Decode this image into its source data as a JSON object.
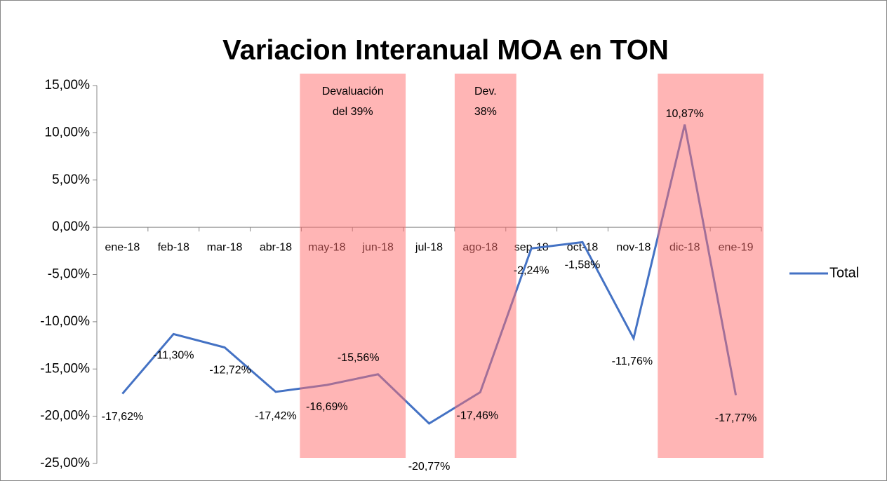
{
  "chart_data": {
    "type": "line",
    "title": "Variacion Interanual MOA en TON",
    "categories": [
      "ene-18",
      "feb-18",
      "mar-18",
      "abr-18",
      "may-18",
      "jun-18",
      "jul-18",
      "ago-18",
      "sep-18",
      "oct-18",
      "nov-18",
      "dic-18",
      "ene-19"
    ],
    "series": [
      {
        "name": "Total",
        "color": "#4472c4",
        "values": [
          -17.62,
          -11.3,
          -12.72,
          -17.42,
          -16.69,
          -15.56,
          -20.77,
          -17.46,
          -2.24,
          -1.58,
          -11.76,
          10.87,
          -17.77
        ],
        "value_labels": [
          "-17,62%",
          "-11,30%",
          "-12,72%",
          "-17,42%",
          "-16,69%",
          "-15,56%",
          "-20,77%",
          "-17,46%",
          "-2,24%",
          "-1,58%",
          "-11,76%",
          "10,87%",
          "-17,77%"
        ]
      }
    ],
    "ylim": [
      -25,
      15
    ],
    "yticks": [
      {
        "value": 15,
        "label": "15,00%"
      },
      {
        "value": 10,
        "label": "10,00%"
      },
      {
        "value": 5,
        "label": "5,00%"
      },
      {
        "value": 0,
        "label": "0,00%"
      },
      {
        "value": -5,
        "label": "-5,00%"
      },
      {
        "value": -10,
        "label": "-10,00%"
      },
      {
        "value": -15,
        "label": "-15,00%"
      },
      {
        "value": -20,
        "label": "-20,00%"
      },
      {
        "value": -25,
        "label": "-25,00%"
      }
    ],
    "legend": "right",
    "annotations": [
      {
        "text": [
          "Devaluación",
          "del 39%"
        ],
        "start": "may-18",
        "end": "jun-18"
      },
      {
        "text": [
          "Dev.",
          "38%"
        ],
        "start": "ago-18",
        "end": "ago-18"
      },
      {
        "start": "dic-18",
        "end": "ene-19"
      }
    ]
  }
}
